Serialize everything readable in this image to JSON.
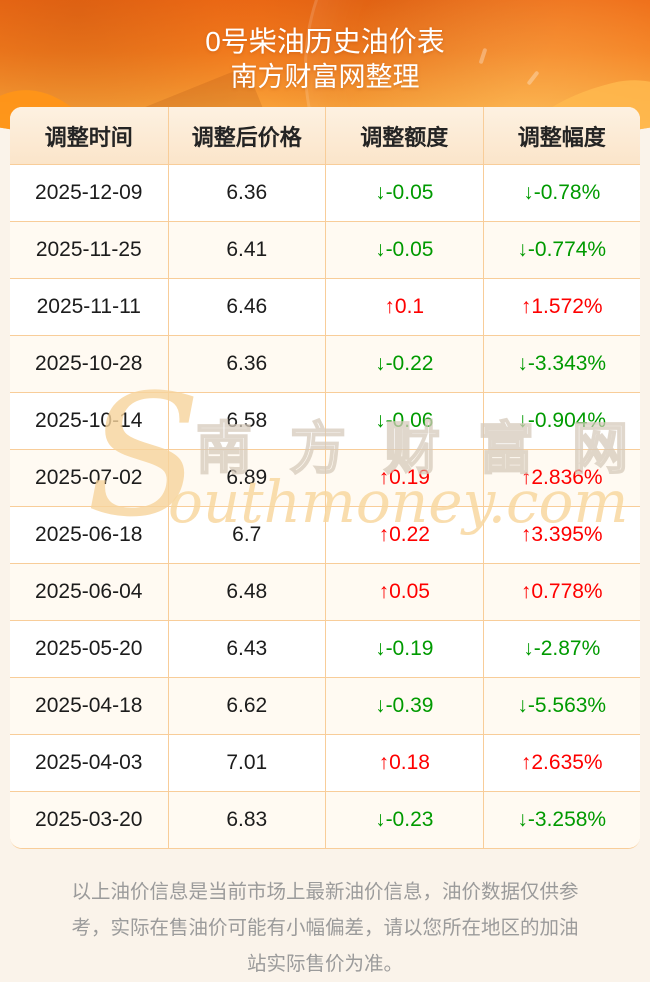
{
  "header": {
    "title": "0号柴油历史油价表",
    "subtitle": "南方财富网整理"
  },
  "table": {
    "columns": [
      "调整时间",
      "调整后价格",
      "调整额度",
      "调整幅度"
    ],
    "arrow_up": "↑",
    "arrow_down": "↓",
    "rows": [
      {
        "date": "2025-12-09",
        "price": "6.36",
        "change": "-0.05",
        "rate": "-0.78%",
        "direction": "down"
      },
      {
        "date": "2025-11-25",
        "price": "6.41",
        "change": "-0.05",
        "rate": "-0.774%",
        "direction": "down"
      },
      {
        "date": "2025-11-11",
        "price": "6.46",
        "change": "0.1",
        "rate": "1.572%",
        "direction": "up"
      },
      {
        "date": "2025-10-28",
        "price": "6.36",
        "change": "-0.22",
        "rate": "-3.343%",
        "direction": "down"
      },
      {
        "date": "2025-10-14",
        "price": "6.58",
        "change": "-0.06",
        "rate": "-0.904%",
        "direction": "down"
      },
      {
        "date": "2025-07-02",
        "price": "6.89",
        "change": "0.19",
        "rate": "2.836%",
        "direction": "up"
      },
      {
        "date": "2025-06-18",
        "price": "6.7",
        "change": "0.22",
        "rate": "3.395%",
        "direction": "up"
      },
      {
        "date": "2025-06-04",
        "price": "6.48",
        "change": "0.05",
        "rate": "0.778%",
        "direction": "up"
      },
      {
        "date": "2025-05-20",
        "price": "6.43",
        "change": "-0.19",
        "rate": "-2.87%",
        "direction": "down"
      },
      {
        "date": "2025-04-18",
        "price": "6.62",
        "change": "-0.39",
        "rate": "-5.563%",
        "direction": "down"
      },
      {
        "date": "2025-04-03",
        "price": "7.01",
        "change": "0.18",
        "rate": "2.635%",
        "direction": "up"
      },
      {
        "date": "2025-03-20",
        "price": "6.83",
        "change": "-0.23",
        "rate": "-3.258%",
        "direction": "down"
      }
    ]
  },
  "watermark": {
    "big_s": "S",
    "cn": "南方财富网",
    "en": "outhmoney.com"
  },
  "footer": {
    "note": "以上油价信息是当前市场上最新油价信息，油价数据仅供参考，实际在售油价可能有小幅偏差，请以您所在地区的加油站实际售价为准。"
  },
  "colors": {
    "up": "#fe0000",
    "down": "#009a00",
    "border": "#f8cd99",
    "note": "#9b9b9b",
    "hero_orange": "#f37c1e",
    "header_bg": "#fbe5ca"
  }
}
